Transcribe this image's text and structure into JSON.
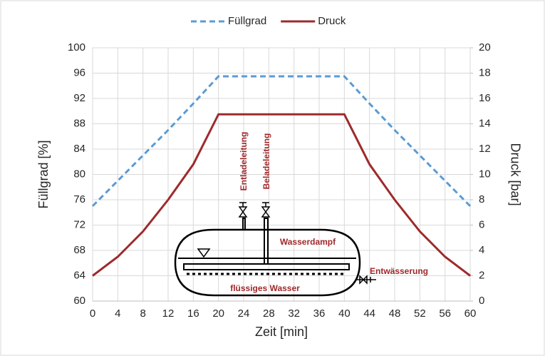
{
  "chart_data": {
    "type": "line",
    "x": [
      0,
      4,
      8,
      12,
      16,
      20,
      24,
      28,
      32,
      36,
      40,
      44,
      48,
      52,
      56,
      60
    ],
    "series": [
      {
        "name": "Füllgrad",
        "color": "#5b9bd5",
        "dashed": true,
        "axis": "y",
        "values": [
          75,
          79,
          83,
          87,
          91.2,
          95.5,
          95.5,
          95.5,
          95.5,
          95.5,
          95.5,
          91.2,
          87,
          83,
          79,
          75
        ]
      },
      {
        "name": "Druck",
        "color": "#9e2a2b",
        "dashed": false,
        "axis": "y2",
        "values": [
          2,
          3.5,
          5.5,
          8,
          10.8,
          14.75,
          14.75,
          14.75,
          14.75,
          14.75,
          14.75,
          10.8,
          8,
          5.5,
          3.5,
          2
        ]
      }
    ],
    "xlabel": "Zeit [min]",
    "ylabel": "Füllgrad [%]",
    "y2label": "Druck [bar]",
    "xlim": [
      0,
      60
    ],
    "xticks": [
      0,
      4,
      8,
      12,
      16,
      20,
      24,
      28,
      32,
      36,
      40,
      44,
      48,
      52,
      56,
      60
    ],
    "ylim": [
      60,
      100
    ],
    "yticks": [
      60,
      64,
      68,
      72,
      76,
      80,
      84,
      88,
      92,
      96,
      100
    ],
    "y2lim": [
      0,
      20
    ],
    "y2ticks": [
      0,
      2,
      4,
      6,
      8,
      10,
      12,
      14,
      16,
      18,
      20
    ],
    "grid": true,
    "legend": "top",
    "annotations": [
      "Entladeleitung",
      "Beladeleitung",
      "Wasserdampf",
      "Entwässerung",
      "flüssiges Wasser"
    ]
  }
}
